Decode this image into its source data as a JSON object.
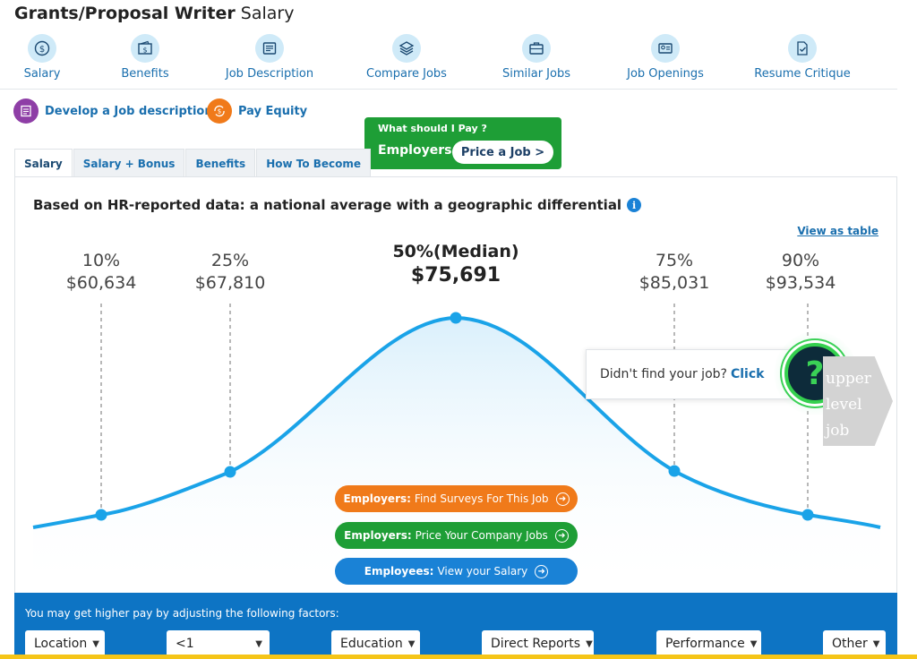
{
  "header": {
    "title_bold": "Grants/Proposal Writer",
    "title_rest": " Salary"
  },
  "nav": [
    {
      "label": "Salary",
      "icon": "dollar-icon"
    },
    {
      "label": "Benefits",
      "icon": "wallet-icon"
    },
    {
      "label": "Job Description",
      "icon": "document-icon"
    },
    {
      "label": "Compare Jobs",
      "icon": "layers-icon"
    },
    {
      "label": "Similar Jobs",
      "icon": "briefcase-icon"
    },
    {
      "label": "Job Openings",
      "icon": "id-card-icon"
    },
    {
      "label": "Resume Critique",
      "icon": "resume-check-icon"
    }
  ],
  "actions": {
    "develop": {
      "label": "Develop a Job description",
      "color": "#8e3ea6",
      "icon": "job-description-icon"
    },
    "equity": {
      "label": "Pay Equity",
      "color": "#f07a1a",
      "icon": "pay-equity-icon"
    }
  },
  "pay_box": {
    "question": "What should I Pay ?",
    "employers": "Employers",
    "button": "Price a Job >"
  },
  "tabs": [
    "Salary",
    "Salary + Bonus",
    "Benefits",
    "How To Become"
  ],
  "chart": {
    "heading": "Based on HR-reported data: a national average with a geographic differential",
    "view_table": "View as table"
  },
  "chart_data": {
    "type": "line",
    "percentiles": [
      {
        "label": "10%",
        "value": "$60,634"
      },
      {
        "label": "25%",
        "value": "$67,810"
      },
      {
        "label": "50%(Median)",
        "value": "$75,691"
      },
      {
        "label": "75%",
        "value": "$85,031"
      },
      {
        "label": "90%",
        "value": "$93,534"
      }
    ],
    "x": [
      60634,
      67810,
      75691,
      85031,
      93534
    ],
    "curve_color": "#1aa3e8"
  },
  "cta": {
    "surveys": {
      "bold": "Employers:",
      "text": "Find Surveys For This Job"
    },
    "price": {
      "bold": "Employers:",
      "text": "Price Your Company Jobs"
    },
    "view": {
      "bold": "Employees:",
      "text": "View your Salary"
    }
  },
  "popup": {
    "text": "Didn't find your job?",
    "click": "Click",
    "tag": [
      "upper",
      "level",
      "job"
    ]
  },
  "factors": {
    "title": "You may get higher pay by adjusting the following factors:",
    "selects": [
      "Location",
      "<1",
      "Education",
      "Direct Reports",
      "Performance",
      "Other"
    ]
  }
}
